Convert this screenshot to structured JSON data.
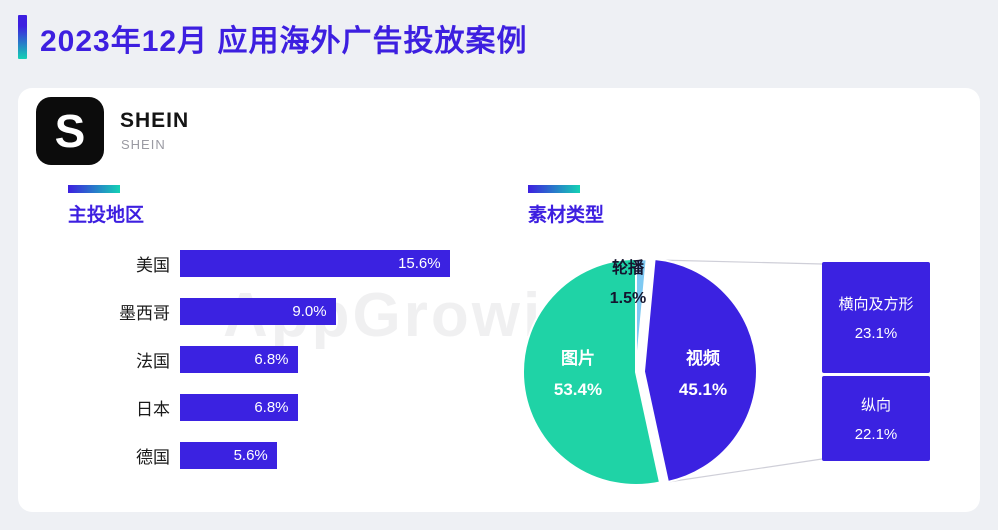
{
  "header": {
    "title": "2023年12月 应用海外广告投放案例"
  },
  "brand": {
    "logo_letter": "S",
    "name": "SHEIN",
    "subtitle": "SHEIN"
  },
  "watermark": {
    "text": "AppGrowing",
    "mark": "®"
  },
  "colors": {
    "title_purple": "#3d1fe0",
    "bar_purple": "#3b22e1",
    "pie_green": "#1fd3a6",
    "pie_purple": "#3b22e1",
    "pie_lightblue": "#7ec9f2",
    "gradient_teal": "#14d2b4"
  },
  "chart_data": [
    {
      "type": "bar",
      "title": "主投地区",
      "categories": [
        "美国",
        "墨西哥",
        "法国",
        "日本",
        "德国"
      ],
      "values": [
        15.6,
        9.0,
        6.8,
        6.8,
        5.6
      ],
      "value_labels": [
        "15.6%",
        "9.0%",
        "6.8%",
        "6.8%",
        "5.6%"
      ],
      "xlabel": "",
      "ylabel": "",
      "xlim": [
        0,
        16.2
      ],
      "bar_color": "#3b22e1",
      "grid": false,
      "value_label_position": "inside-end"
    },
    {
      "type": "pie",
      "title": "素材类型",
      "start_angle_deg": 0,
      "direction": "clockwise",
      "slices": [
        {
          "label": "轮播",
          "value": 1.5,
          "value_label": "1.5%",
          "color": "#7ec9f2",
          "explode": 0
        },
        {
          "label": "视频",
          "value": 45.1,
          "value_label": "45.1%",
          "color": "#3b22e1",
          "explode": 8
        },
        {
          "label": "图片",
          "value": 53.4,
          "value_label": "53.4%",
          "color": "#1fd3a6",
          "explode": 0
        }
      ],
      "video_breakdown": [
        {
          "label": "横向及方形",
          "value_label": "23.1%"
        },
        {
          "label": "纵向",
          "value_label": "22.1%"
        }
      ]
    }
  ]
}
